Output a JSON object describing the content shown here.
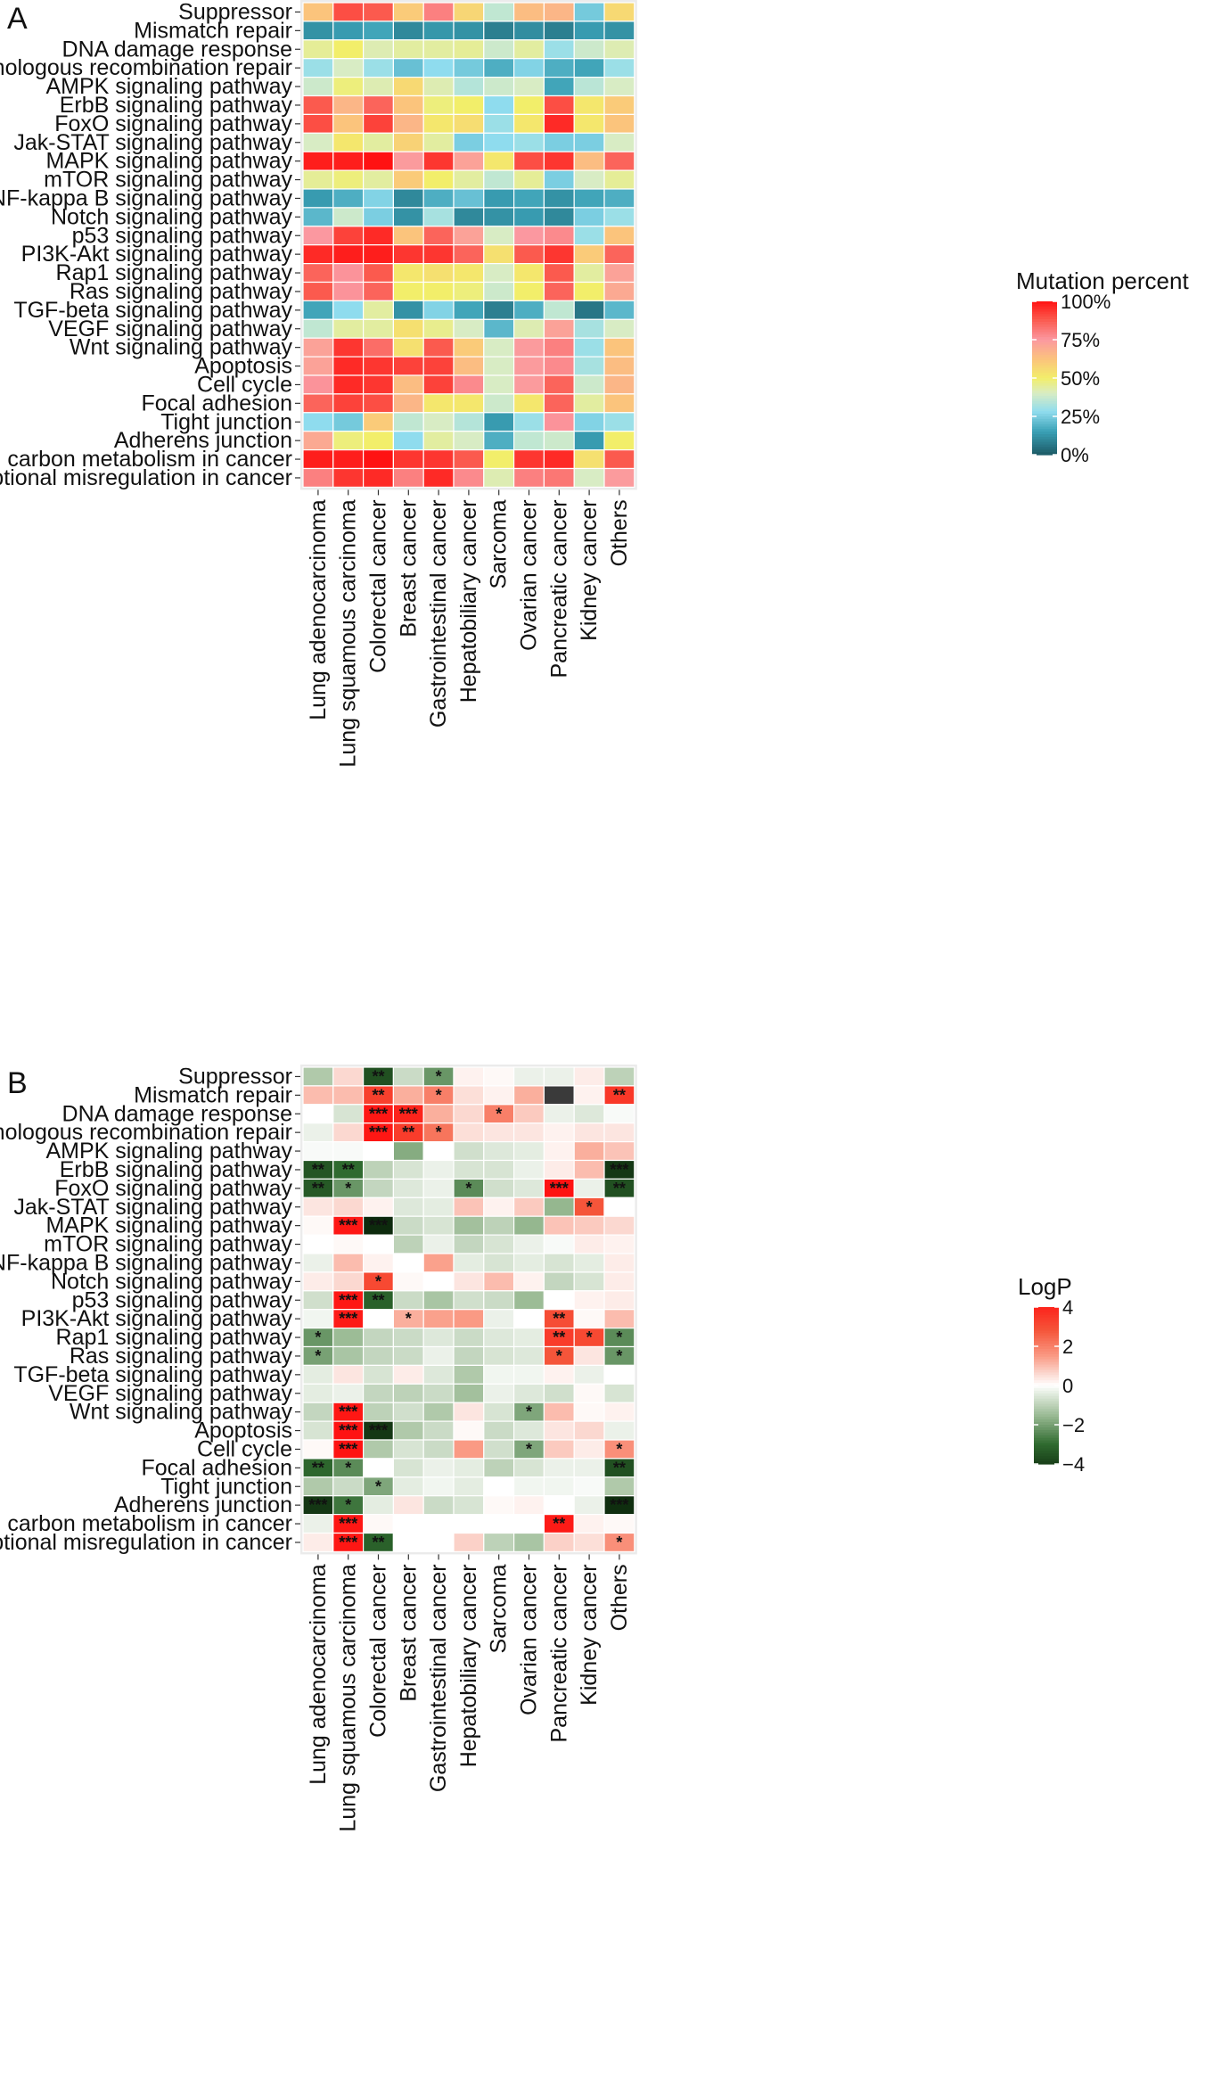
{
  "figure": {
    "panel_a_label": "A",
    "panel_b_label": "B"
  },
  "chart_data": [
    {
      "type": "heatmap",
      "panel": "A",
      "title": "",
      "legend_title": "Mutation percent",
      "legend_ticks": [
        "100%",
        "75%",
        "50%",
        "25%",
        "0%"
      ],
      "legend_tick_values": [
        100,
        75,
        50,
        25,
        0
      ],
      "color_scale": [
        {
          "v": 0,
          "color": "#1c5a66"
        },
        {
          "v": 15,
          "color": "#3aa0b5"
        },
        {
          "v": 28,
          "color": "#8fdcee"
        },
        {
          "v": 40,
          "color": "#d8ecc4"
        },
        {
          "v": 50,
          "color": "#f2ee6a"
        },
        {
          "v": 62,
          "color": "#fbc47c"
        },
        {
          "v": 75,
          "color": "#fb98a0"
        },
        {
          "v": 88,
          "color": "#fb5a4e"
        },
        {
          "v": 100,
          "color": "#ff1212"
        }
      ],
      "rows": [
        "Suppressor",
        "Mismatch repair",
        "DNA damage response",
        "Homologous recombination repair",
        "AMPK signaling pathway",
        "ErbB signaling pathway",
        "FoxO signaling pathway",
        "Jak-STAT signaling pathway",
        "MAPK signaling pathway",
        "mTOR signaling pathway",
        "NF-kappa B signaling pathway",
        "Notch signaling pathway",
        "p53 signaling pathway",
        "PI3K-Akt signaling pathway",
        "Rap1 signaling pathway",
        "Ras signaling pathway",
        "TGF-beta signaling pathway",
        "VEGF signaling pathway",
        "Wnt signaling pathway",
        "Apoptosis",
        "Cell cycle",
        "Focal adhesion",
        "Tight junction",
        "Adherens junction",
        "Central carbon metabolism in cancer",
        "Transcriptional misregulation in cancer"
      ],
      "columns": [
        "Lung adenocarcinoma",
        "Lung squamous carcinoma",
        "Colorectal cancer",
        "Breast cancer",
        "Gastrointestinal cancer",
        "Hepatobiliary cancer",
        "Sarcoma",
        "Ovarian cancer",
        "Pancreatic cancer",
        "Kidney cancer",
        "Others"
      ],
      "values": [
        [
          62,
          90,
          88,
          60,
          80,
          57,
          36,
          64,
          66,
          24,
          56
        ],
        [
          12,
          14,
          16,
          10,
          13,
          12,
          8,
          11,
          8,
          14,
          12
        ],
        [
          45,
          50,
          42,
          44,
          44,
          45,
          38,
          44,
          30,
          38,
          42
        ],
        [
          30,
          40,
          30,
          22,
          28,
          24,
          18,
          26,
          18,
          16,
          30
        ],
        [
          38,
          48,
          42,
          56,
          42,
          34,
          38,
          40,
          16,
          35,
          40
        ],
        [
          88,
          66,
          86,
          62,
          48,
          50,
          28,
          50,
          90,
          52,
          60
        ],
        [
          90,
          62,
          92,
          66,
          52,
          55,
          30,
          52,
          96,
          52,
          62
        ],
        [
          40,
          52,
          44,
          58,
          44,
          25,
          28,
          30,
          25,
          25,
          40
        ],
        [
          98,
          98,
          100,
          74,
          94,
          72,
          52,
          90,
          94,
          64,
          86
        ],
        [
          45,
          48,
          44,
          60,
          50,
          44,
          36,
          45,
          25,
          40,
          45
        ],
        [
          14,
          18,
          26,
          10,
          18,
          22,
          14,
          16,
          12,
          16,
          18
        ],
        [
          20,
          38,
          25,
          12,
          32,
          10,
          12,
          14,
          10,
          25,
          30
        ],
        [
          75,
          92,
          96,
          62,
          86,
          72,
          40,
          75,
          78,
          30,
          62
        ],
        [
          96,
          98,
          98,
          94,
          94,
          86,
          54,
          88,
          94,
          60,
          86
        ],
        [
          86,
          76,
          88,
          52,
          54,
          52,
          40,
          52,
          88,
          44,
          72
        ],
        [
          88,
          76,
          86,
          50,
          50,
          48,
          38,
          50,
          86,
          50,
          70
        ],
        [
          16,
          28,
          44,
          12,
          26,
          16,
          8,
          18,
          36,
          6,
          20
        ],
        [
          36,
          44,
          44,
          54,
          46,
          40,
          20,
          42,
          72,
          32,
          40
        ],
        [
          72,
          94,
          84,
          54,
          88,
          60,
          40,
          74,
          80,
          30,
          62
        ],
        [
          72,
          96,
          94,
          92,
          92,
          64,
          40,
          74,
          78,
          32,
          64
        ],
        [
          76,
          96,
          94,
          64,
          92,
          78,
          40,
          74,
          86,
          38,
          66
        ],
        [
          86,
          92,
          90,
          66,
          52,
          52,
          38,
          52,
          86,
          44,
          62
        ],
        [
          28,
          24,
          60,
          36,
          40,
          34,
          14,
          30,
          76,
          26,
          30
        ],
        [
          70,
          48,
          50,
          28,
          44,
          40,
          18,
          36,
          38,
          14,
          50
        ],
        [
          98,
          98,
          100,
          94,
          94,
          88,
          50,
          94,
          96,
          54,
          88
        ],
        [
          80,
          94,
          96,
          80,
          96,
          78,
          42,
          80,
          82,
          40,
          74
        ]
      ]
    },
    {
      "type": "heatmap",
      "panel": "B",
      "title": "",
      "legend_title": "LogP",
      "legend_ticks": [
        "4",
        "2",
        "0",
        "−2",
        "−4"
      ],
      "legend_tick_values": [
        4,
        2,
        0,
        -2,
        -4
      ],
      "color_scale": [
        {
          "v": -4.5,
          "color": "#0d2a0d"
        },
        {
          "v": -3,
          "color": "#2f6a2f"
        },
        {
          "v": -1.5,
          "color": "#9cbc96"
        },
        {
          "v": -0.5,
          "color": "#dde8da"
        },
        {
          "v": 0,
          "color": "#ffffff"
        },
        {
          "v": 0.6,
          "color": "#fbd8d0"
        },
        {
          "v": 1.5,
          "color": "#fa9a84"
        },
        {
          "v": 2.8,
          "color": "#f5553a"
        },
        {
          "v": 4.5,
          "color": "#ff0f0f"
        }
      ],
      "rows": [
        "Suppressor",
        "Mismatch repair",
        "DNA damage response",
        "Homologous recombination repair",
        "AMPK signaling pathway",
        "ErbB signaling pathway",
        "FoxO signaling pathway",
        "Jak-STAT signaling pathway",
        "MAPK signaling pathway",
        "mTOR signaling pathway",
        "NF-kappa B signaling pathway",
        "Notch signaling pathway",
        "p53 signaling pathway",
        "PI3K-Akt signaling pathway",
        "Rap1 signaling pathway",
        "Ras signaling pathway",
        "TGF-beta signaling pathway",
        "VEGF signaling pathway",
        "Wnt signaling pathway",
        "Apoptosis",
        "Cell cycle",
        "Focal adhesion",
        "Tight junction",
        "Adherens junction",
        "Central carbon metabolism in cancer",
        "Transcriptional misregulation in cancer"
      ],
      "columns": [
        "Lung adenocarcinoma",
        "Lung squamous carcinoma",
        "Colorectal cancer",
        "Breast cancer",
        "Gastrointestinal cancer",
        "Hepatobiliary cancer",
        "Sarcoma",
        "Ovarian cancer",
        "Pancreatic cancer",
        "Kidney cancer",
        "Others"
      ],
      "values": [
        [
          -1.2,
          0.6,
          -3.6,
          -0.8,
          -2.2,
          0.2,
          0.1,
          -0.3,
          -0.3,
          0.3,
          -1.0
        ],
        [
          1.0,
          1.0,
          3.3,
          1.2,
          2.0,
          0.5,
          0.2,
          1.2,
          null,
          0.2,
          3.5
        ],
        [
          0.0,
          -0.6,
          4.3,
          4.0,
          1.2,
          0.6,
          2.0,
          0.8,
          -0.3,
          -0.5,
          -0.1
        ],
        [
          -0.3,
          0.6,
          4.3,
          3.4,
          2.2,
          0.5,
          0.4,
          0.4,
          0.2,
          0.4,
          0.4
        ],
        [
          -0.1,
          -0.1,
          0.0,
          -1.8,
          0.0,
          -0.7,
          -0.5,
          -0.4,
          0.2,
          1.2,
          0.9
        ],
        [
          -3.5,
          -3.0,
          -1.0,
          -0.6,
          -0.3,
          -0.6,
          -0.6,
          -0.3,
          0.3,
          1.0,
          -4.2
        ],
        [
          -3.4,
          -2.2,
          -0.9,
          -0.5,
          -0.3,
          -2.4,
          -0.7,
          -0.5,
          4.4,
          -0.3,
          -3.6
        ],
        [
          0.4,
          0.6,
          0.2,
          -0.5,
          -0.4,
          0.9,
          0.2,
          0.8,
          -1.6,
          2.8,
          0.0
        ],
        [
          0.1,
          4.3,
          -4.5,
          -0.8,
          -0.6,
          -1.4,
          -1.0,
          -1.6,
          0.9,
          0.8,
          0.6
        ],
        [
          0.0,
          0.1,
          0.0,
          -1.0,
          -0.3,
          -0.9,
          -0.6,
          -0.3,
          -0.1,
          0.3,
          0.2
        ],
        [
          -0.3,
          1.0,
          0.2,
          0.0,
          1.4,
          -0.4,
          -0.6,
          -0.4,
          -0.6,
          -0.4,
          0.3
        ],
        [
          0.3,
          0.6,
          3.1,
          0.1,
          0.0,
          0.4,
          1.0,
          0.2,
          -0.9,
          -0.6,
          0.3
        ],
        [
          -0.7,
          4.3,
          -3.2,
          -0.8,
          -1.3,
          -0.7,
          -0.8,
          -1.5,
          0.0,
          0.2,
          0.3
        ],
        [
          -0.2,
          4.2,
          0.0,
          1.2,
          1.4,
          1.5,
          -0.3,
          0.0,
          3.0,
          0.1,
          1.0
        ],
        [
          -2.2,
          -1.5,
          -0.9,
          -0.8,
          -0.5,
          -0.8,
          -0.5,
          -0.4,
          3.4,
          3.1,
          -2.4
        ],
        [
          -2.0,
          -1.3,
          -0.9,
          -0.8,
          -0.3,
          -0.9,
          -0.6,
          -0.5,
          2.8,
          0.4,
          -2.2
        ],
        [
          -0.4,
          0.4,
          -0.6,
          0.3,
          -0.5,
          -1.2,
          -0.2,
          -0.2,
          0.2,
          -0.3,
          0.0
        ],
        [
          -0.4,
          -0.3,
          -0.9,
          -1.0,
          -0.8,
          -1.4,
          -0.3,
          -0.5,
          -0.7,
          0.1,
          -0.6
        ],
        [
          -0.9,
          4.3,
          -1.0,
          -0.7,
          -1.2,
          0.4,
          -0.6,
          -1.9,
          1.0,
          0.1,
          0.2
        ],
        [
          -0.6,
          4.4,
          -4.2,
          -1.2,
          -0.8,
          0.1,
          -0.8,
          -0.5,
          0.4,
          0.6,
          -0.3
        ],
        [
          0.1,
          4.4,
          -1.2,
          -0.6,
          -0.8,
          1.5,
          -0.7,
          -1.9,
          0.8,
          0.3,
          1.7
        ],
        [
          -3.1,
          -2.4,
          0.0,
          -0.6,
          -0.3,
          -0.4,
          -1.0,
          -0.6,
          -0.3,
          -0.3,
          -3.6
        ],
        [
          -1.2,
          -0.8,
          -1.9,
          -0.4,
          -0.2,
          -0.4,
          0.0,
          -0.2,
          -0.2,
          -0.1,
          -1.2
        ],
        [
          -4.2,
          -2.8,
          -0.4,
          0.4,
          -0.8,
          -0.6,
          0.1,
          0.2,
          0.0,
          -0.3,
          -4.4
        ],
        [
          -0.3,
          4.3,
          0.1,
          0.0,
          0.0,
          0.0,
          0.0,
          0.0,
          4.2,
          0.2,
          0.1
        ],
        [
          0.3,
          4.3,
          -3.2,
          0.0,
          0.0,
          0.7,
          -1.0,
          -1.3,
          0.7,
          0.5,
          1.7
        ]
      ],
      "significance": [
        [
          "",
          "",
          "**",
          "",
          "*",
          "",
          "",
          "",
          "",
          "",
          ""
        ],
        [
          "",
          "",
          "**",
          "",
          "*",
          "",
          "",
          "",
          "",
          "",
          "**"
        ],
        [
          "",
          "",
          "***",
          "***",
          "",
          "",
          "*",
          "",
          "",
          "",
          ""
        ],
        [
          "",
          "",
          "***",
          "**",
          "*",
          "",
          "",
          "",
          "",
          "",
          ""
        ],
        [
          "",
          "",
          "",
          "",
          "",
          "",
          "",
          "",
          "",
          "",
          ""
        ],
        [
          "**",
          "**",
          "",
          "",
          "",
          "",
          "",
          "",
          "",
          "",
          "***"
        ],
        [
          "**",
          "*",
          "",
          "",
          "",
          "*",
          "",
          "",
          "***",
          "",
          "**"
        ],
        [
          "",
          "",
          "",
          "",
          "",
          "",
          "",
          "",
          "",
          "*",
          ""
        ],
        [
          "",
          "***",
          "***",
          "",
          "",
          "",
          "",
          "",
          "",
          "",
          ""
        ],
        [
          "",
          "",
          "",
          "",
          "",
          "",
          "",
          "",
          "",
          "",
          ""
        ],
        [
          "",
          "",
          "",
          "",
          "",
          "",
          "",
          "",
          "",
          "",
          ""
        ],
        [
          "",
          "",
          "*",
          "",
          "",
          "",
          "",
          "",
          "",
          "",
          ""
        ],
        [
          "",
          "***",
          "**",
          "",
          "",
          "",
          "",
          "",
          "",
          "",
          ""
        ],
        [
          "",
          "***",
          "",
          "*",
          "",
          "",
          "",
          "",
          "**",
          "",
          ""
        ],
        [
          "*",
          "",
          "",
          "",
          "",
          "",
          "",
          "",
          "**",
          "*",
          "*"
        ],
        [
          "*",
          "",
          "",
          "",
          "",
          "",
          "",
          "",
          "*",
          "",
          "*"
        ],
        [
          "",
          "",
          "",
          "",
          "",
          "",
          "",
          "",
          "",
          "",
          ""
        ],
        [
          "",
          "",
          "",
          "",
          "",
          "",
          "",
          "",
          "",
          "",
          ""
        ],
        [
          "",
          "***",
          "",
          "",
          "",
          "",
          "",
          "*",
          "",
          "",
          ""
        ],
        [
          "",
          "***",
          "***",
          "",
          "",
          "",
          "",
          "",
          "",
          "",
          ""
        ],
        [
          "",
          "***",
          "",
          "",
          "",
          "",
          "",
          "*",
          "",
          "",
          "*"
        ],
        [
          "**",
          "*",
          "",
          "",
          "",
          "",
          "",
          "",
          "",
          "",
          "**"
        ],
        [
          "",
          "",
          "*",
          "",
          "",
          "",
          "",
          "",
          "",
          "",
          ""
        ],
        [
          "***",
          "*",
          "",
          "",
          "",
          "",
          "",
          "",
          "",
          "",
          "***"
        ],
        [
          "",
          "***",
          "",
          "",
          "",
          "",
          "",
          "",
          "**",
          "",
          ""
        ],
        [
          "",
          "***",
          "**",
          "",
          "",
          "",
          "",
          "",
          "",
          "",
          "*"
        ]
      ],
      "na_color": "#3a3a3a"
    }
  ]
}
